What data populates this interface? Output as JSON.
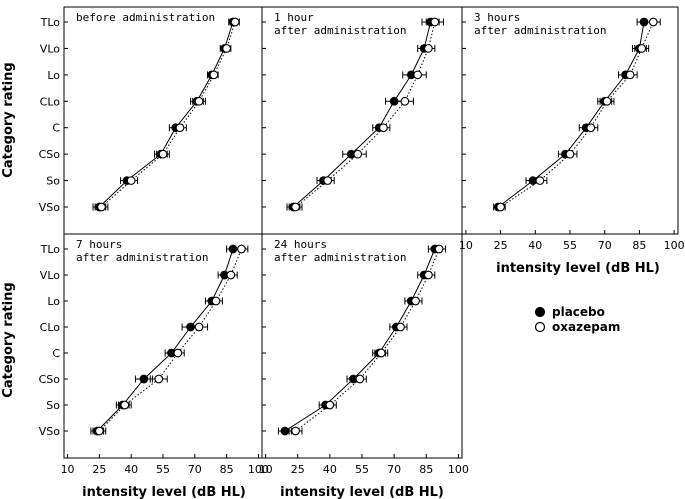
{
  "chart_data": {
    "type": "line",
    "ylabel": "Category rating",
    "xlabel": "intensity level (dB HL)",
    "categories": [
      "VSo",
      "So",
      "CSo",
      "C",
      "CLo",
      "Lo",
      "VLo",
      "TLo"
    ],
    "x_ticks": [
      "10",
      "25",
      "40",
      "55",
      "70",
      "85",
      "100"
    ],
    "xlim": [
      10,
      100
    ],
    "grid": false,
    "legend": {
      "position": "right",
      "entries": [
        {
          "name": "placebo",
          "marker": "filled-circle",
          "line": "solid"
        },
        {
          "name": "oxazepam",
          "marker": "open-circle",
          "line": "dotted"
        }
      ]
    },
    "panels": [
      {
        "title": [
          "before administration"
        ],
        "series": [
          {
            "name": "placebo",
            "values": [
              25,
              38,
              54,
              61,
              71,
              78,
              84,
              88
            ],
            "err": [
              3,
              3,
              3,
              3,
              3,
              2,
              2,
              2
            ]
          },
          {
            "name": "oxazepam",
            "values": [
              26,
              40,
              55,
              63,
              72,
              79,
              85,
              89
            ],
            "err": [
              3,
              3,
              3,
              3,
              3,
              2,
              2,
              2
            ]
          }
        ]
      },
      {
        "title": [
          "1 hour",
          "after administration"
        ],
        "series": [
          {
            "name": "placebo",
            "values": [
              23,
              37,
              50,
              63,
              70,
              78,
              84,
              87
            ],
            "err": [
              3,
              3,
              4,
              3,
              4,
              4,
              3,
              4
            ]
          },
          {
            "name": "oxazepam",
            "values": [
              24,
              39,
              53,
              65,
              75,
              81,
              86,
              89
            ],
            "err": [
              3,
              3,
              4,
              3,
              4,
              4,
              3,
              4
            ]
          }
        ]
      },
      {
        "title": [
          "3 hours",
          "after administration"
        ],
        "series": [
          {
            "name": "placebo",
            "values": [
              24,
              39,
              53,
              62,
              70,
              79,
              85,
              87
            ],
            "err": [
              2,
              3,
              3,
              3,
              3,
              3,
              3,
              3
            ]
          },
          {
            "name": "oxazepam",
            "values": [
              25,
              42,
              55,
              64,
              71,
              81,
              86,
              91
            ],
            "err": [
              2,
              3,
              3,
              3,
              3,
              3,
              3,
              3
            ]
          }
        ]
      },
      {
        "title": [
          "7 hours",
          "after administration"
        ],
        "series": [
          {
            "name": "placebo",
            "values": [
              24,
              36,
              46,
              59,
              68,
              78,
              84,
              88
            ],
            "err": [
              3,
              3,
              4,
              3,
              4,
              3,
              3,
              3
            ]
          },
          {
            "name": "oxazepam",
            "values": [
              25,
              37,
              53,
              62,
              72,
              80,
              87,
              92
            ],
            "err": [
              3,
              3,
              4,
              3,
              4,
              3,
              3,
              3
            ]
          }
        ]
      },
      {
        "title": [
          "24 hours",
          "after administration"
        ],
        "series": [
          {
            "name": "placebo",
            "values": [
              19,
              38,
              51,
              63,
              71,
              78,
              84,
              89
            ],
            "err": [
              3,
              3,
              3,
              3,
              3,
              3,
              3,
              3
            ]
          },
          {
            "name": "oxazepam",
            "values": [
              24,
              40,
              54,
              64,
              73,
              80,
              86,
              91
            ],
            "err": [
              3,
              3,
              3,
              3,
              3,
              3,
              3,
              3
            ]
          }
        ]
      }
    ]
  }
}
